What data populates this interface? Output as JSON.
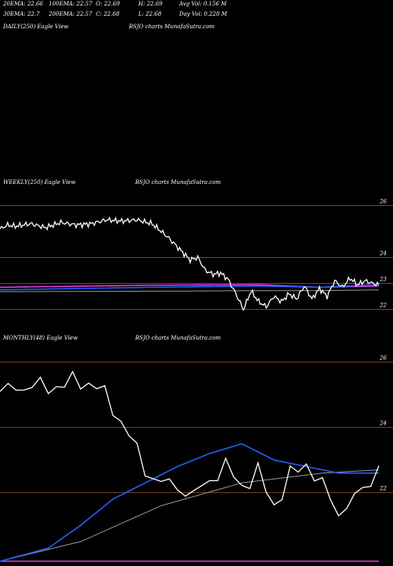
{
  "stats": {
    "ema20": "20EMA: 22.66",
    "ema100": "100EMA: 22.57",
    "open": "O: 22.69",
    "high": "H: 22.69",
    "avg_vol": "Avg Vol: 0.156  M",
    "ema30": "30EMA: 22.7",
    "ema200": "200EMA: 22.57",
    "close": "C: 22.68",
    "low": "L: 22.68",
    "day_vol": "Day Vol: 0.228 M"
  },
  "panels": {
    "daily": {
      "title": "DAILY(250) Eagle  View",
      "brand": "BSJO charts MunafaSutra.com"
    },
    "weekly": {
      "title": "WEEKLY(250) Eagle  View",
      "brand": "BSJO charts MunafaSutra.com"
    },
    "monthly": {
      "title": "MONTHLY(48) Eagle  View",
      "brand": "BSJO charts MunafaSutra.com"
    }
  },
  "colors": {
    "background": "#000000",
    "grid": "#b05a1e",
    "price": "#ffffff",
    "ma_blue": "#1f5fff",
    "ma_magenta": "#ff40ff",
    "ma_gray": "#9a9a9a"
  },
  "chart_data": [
    {
      "type": "line",
      "name": "weekly",
      "ylim": [
        21.5,
        26.5
      ],
      "y_ticks": [
        26,
        24,
        23,
        22
      ],
      "tick_labels": [
        "26",
        "24",
        "23",
        "22"
      ],
      "x_count": 250,
      "price_anchors": [
        [
          0,
          25.1
        ],
        [
          5,
          25.25
        ],
        [
          10,
          25.2
        ],
        [
          20,
          25.3
        ],
        [
          30,
          25.15
        ],
        [
          40,
          25.35
        ],
        [
          50,
          25.25
        ],
        [
          60,
          25.3
        ],
        [
          70,
          25.45
        ],
        [
          80,
          25.4
        ],
        [
          90,
          25.45
        ],
        [
          100,
          25.3
        ],
        [
          110,
          24.8
        ],
        [
          120,
          24.2
        ],
        [
          125,
          23.9
        ],
        [
          130,
          24.0
        ],
        [
          135,
          23.5
        ],
        [
          140,
          23.35
        ],
        [
          145,
          23.4
        ],
        [
          150,
          23.15
        ],
        [
          155,
          22.6
        ],
        [
          160,
          22.0
        ],
        [
          165,
          22.7
        ],
        [
          170,
          22.3
        ],
        [
          175,
          22.1
        ],
        [
          180,
          22.5
        ],
        [
          185,
          22.3
        ],
        [
          190,
          22.6
        ],
        [
          195,
          22.4
        ],
        [
          200,
          22.9
        ],
        [
          205,
          22.4
        ],
        [
          210,
          22.8
        ],
        [
          215,
          22.5
        ],
        [
          220,
          23.1
        ],
        [
          225,
          22.85
        ],
        [
          230,
          23.2
        ],
        [
          235,
          22.95
        ],
        [
          240,
          23.1
        ],
        [
          245,
          23.0
        ],
        [
          249,
          22.95
        ]
      ],
      "ma_blue": [
        [
          0,
          22.75
        ],
        [
          100,
          22.85
        ],
        [
          170,
          22.9
        ],
        [
          210,
          22.85
        ],
        [
          249,
          22.95
        ]
      ],
      "ma_magenta": [
        [
          0,
          22.85
        ],
        [
          100,
          22.93
        ],
        [
          170,
          22.95
        ],
        [
          210,
          22.85
        ],
        [
          249,
          22.9
        ]
      ],
      "ma_gray": [
        [
          0,
          22.68
        ],
        [
          100,
          22.7
        ],
        [
          170,
          22.72
        ],
        [
          210,
          22.72
        ],
        [
          249,
          22.75
        ]
      ]
    },
    {
      "type": "line",
      "name": "monthly",
      "ylim": [
        19.8,
        26.5
      ],
      "y_ticks": [
        26,
        24,
        22
      ],
      "tick_labels": [
        "26",
        "24",
        "22"
      ],
      "x_count": 48,
      "price_anchors": [
        [
          0,
          25.1
        ],
        [
          2,
          25.2
        ],
        [
          4,
          25.3
        ],
        [
          6,
          25.2
        ],
        [
          8,
          25.35
        ],
        [
          10,
          25.4
        ],
        [
          12,
          25.3
        ],
        [
          14,
          24.6
        ],
        [
          16,
          23.8
        ],
        [
          18,
          22.7
        ],
        [
          20,
          22.3
        ],
        [
          22,
          22.2
        ],
        [
          24,
          21.9
        ],
        [
          26,
          22.4
        ],
        [
          28,
          22.8
        ],
        [
          30,
          22.2
        ],
        [
          32,
          22.6
        ],
        [
          34,
          21.6
        ],
        [
          36,
          22.5
        ],
        [
          38,
          22.9
        ],
        [
          40,
          22.2
        ],
        [
          42,
          21.4
        ],
        [
          44,
          21.8
        ],
        [
          46,
          22.4
        ],
        [
          47,
          22.8
        ]
      ],
      "ma_blue": [
        [
          0,
          19.9
        ],
        [
          6,
          20.3
        ],
        [
          10,
          21.0
        ],
        [
          14,
          21.8
        ],
        [
          18,
          22.3
        ],
        [
          22,
          22.8
        ],
        [
          26,
          23.2
        ],
        [
          30,
          23.5
        ],
        [
          34,
          23.0
        ],
        [
          38,
          22.8
        ],
        [
          42,
          22.6
        ],
        [
          47,
          22.6
        ]
      ],
      "ma_magenta": [
        [
          0,
          19.9
        ],
        [
          47,
          19.9
        ]
      ],
      "ma_gray": [
        [
          0,
          19.9
        ],
        [
          10,
          20.5
        ],
        [
          20,
          21.6
        ],
        [
          30,
          22.3
        ],
        [
          40,
          22.6
        ],
        [
          47,
          22.7
        ]
      ]
    }
  ]
}
